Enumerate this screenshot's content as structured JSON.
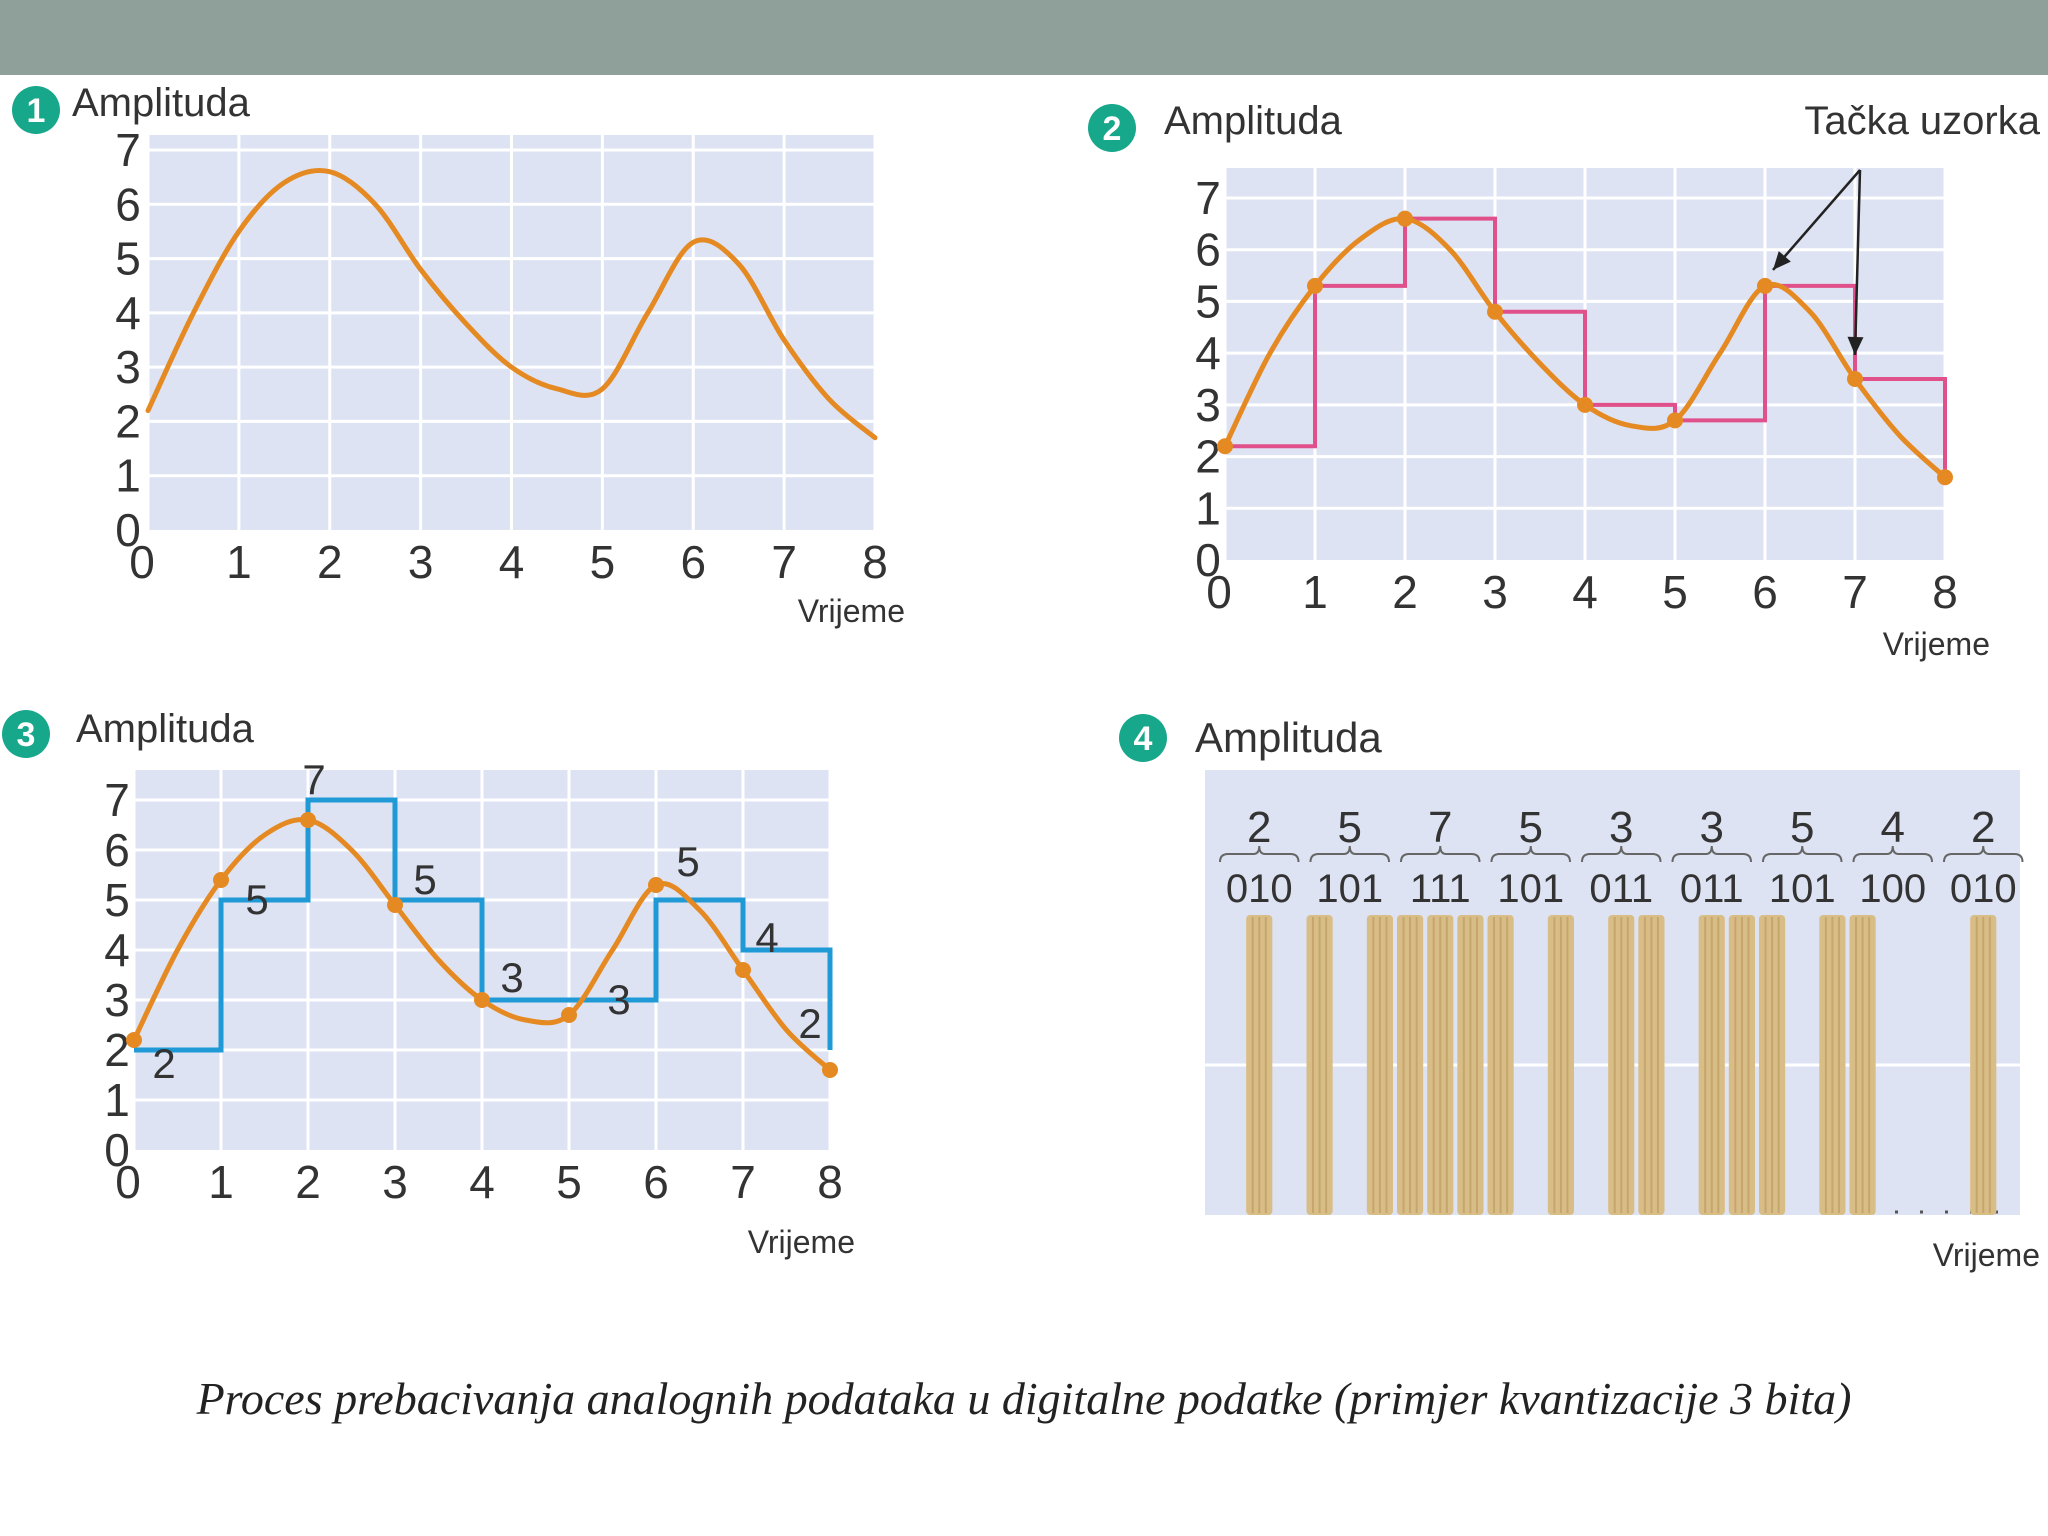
{
  "caption": "Proces prebacivanja analognih podataka u digitalne podatke (primjer kvantizacije 3 bita)",
  "colors": {
    "topbar": "#8fa09a",
    "plot_bg": "#dde3f3",
    "grid": "#ffffff",
    "curve": "#e58a22",
    "badge": "#17a78a",
    "step_pink": "#e0508a",
    "step_blue": "#1f9ad6",
    "bar": "#d9bd86",
    "bar_stripe": "#b8975c",
    "text": "#333333"
  },
  "chart_data": [
    {
      "id": 1,
      "type": "line",
      "badge": "1",
      "ylabel": "Amplituda",
      "xlabel": "Vrijeme",
      "xlim": [
        0,
        8
      ],
      "ylim": [
        0,
        7.5
      ],
      "x_ticks": [
        "0",
        "1",
        "2",
        "3",
        "4",
        "5",
        "6",
        "7",
        "8"
      ],
      "y_ticks": [
        "0",
        "1",
        "2",
        "3",
        "4",
        "5",
        "6",
        "7"
      ],
      "curve": {
        "x": [
          0,
          0.5,
          1,
          1.5,
          2,
          2.5,
          3,
          3.5,
          4,
          4.5,
          5,
          5.5,
          6,
          6.5,
          7,
          7.5,
          8
        ],
        "y": [
          2.2,
          4.0,
          5.5,
          6.4,
          6.6,
          6.0,
          4.8,
          3.8,
          3.0,
          2.6,
          2.6,
          4.0,
          5.3,
          4.9,
          3.5,
          2.4,
          1.7
        ]
      }
    },
    {
      "id": 2,
      "type": "line",
      "badge": "2",
      "ylabel": "Amplituda",
      "xlabel": "Vrijeme",
      "annotation": "Tačka uzorka",
      "xlim": [
        0,
        8
      ],
      "ylim": [
        0,
        7.5
      ],
      "x_ticks": [
        "0",
        "1",
        "2",
        "3",
        "4",
        "5",
        "6",
        "7",
        "8"
      ],
      "y_ticks": [
        "0",
        "1",
        "2",
        "3",
        "4",
        "5",
        "6",
        "7"
      ],
      "curve": {
        "x": [
          0,
          0.5,
          1,
          1.5,
          2,
          2.5,
          3,
          3.5,
          4,
          4.5,
          5,
          5.5,
          6,
          6.5,
          7,
          7.5,
          8
        ],
        "y": [
          2.2,
          4.0,
          5.3,
          6.2,
          6.6,
          6.0,
          4.8,
          3.8,
          3.0,
          2.6,
          2.7,
          4.0,
          5.3,
          4.8,
          3.5,
          2.4,
          1.6
        ]
      },
      "samples": {
        "x": [
          0,
          1,
          2,
          3,
          4,
          5,
          6,
          7,
          8
        ],
        "y": [
          2.2,
          5.3,
          6.6,
          4.8,
          3.0,
          2.7,
          5.3,
          3.5,
          1.6
        ]
      },
      "annotated_samples": [
        6,
        7
      ]
    },
    {
      "id": 3,
      "type": "line",
      "badge": "3",
      "ylabel": "Amplituda",
      "xlabel": "Vrijeme",
      "xlim": [
        0,
        8
      ],
      "ylim": [
        0,
        7.5
      ],
      "x_ticks": [
        "0",
        "1",
        "2",
        "3",
        "4",
        "5",
        "6",
        "7",
        "8"
      ],
      "y_ticks": [
        "0",
        "1",
        "2",
        "3",
        "4",
        "5",
        "6",
        "7"
      ],
      "curve": {
        "x": [
          0,
          0.5,
          1,
          1.5,
          2,
          2.5,
          3,
          3.5,
          4,
          4.5,
          5,
          5.5,
          6,
          6.5,
          7,
          7.5,
          8
        ],
        "y": [
          2.2,
          4.0,
          5.4,
          6.3,
          6.6,
          6.0,
          4.9,
          3.8,
          3.0,
          2.6,
          2.7,
          4.0,
          5.3,
          4.8,
          3.6,
          2.4,
          1.6
        ]
      },
      "samples": {
        "x": [
          0,
          1,
          2,
          3,
          4,
          5,
          6,
          7,
          8
        ],
        "y": [
          2.2,
          5.4,
          6.6,
          4.9,
          3.0,
          2.7,
          5.3,
          3.6,
          1.6
        ]
      },
      "quantized": [
        2,
        5,
        7,
        5,
        3,
        3,
        5,
        4,
        2
      ],
      "quantized_labels": [
        "2",
        "5",
        "7",
        "5",
        "3",
        "3",
        "5",
        "4",
        "2"
      ]
    },
    {
      "id": 4,
      "type": "bar",
      "badge": "4",
      "ylabel": "Amplituda",
      "xlabel": "Vrijeme",
      "values": [
        "2",
        "5",
        "7",
        "5",
        "3",
        "3",
        "5",
        "4",
        "2"
      ],
      "codes": [
        "010",
        "101",
        "111",
        "101",
        "011",
        "011",
        "101",
        "100",
        "010"
      ]
    }
  ]
}
